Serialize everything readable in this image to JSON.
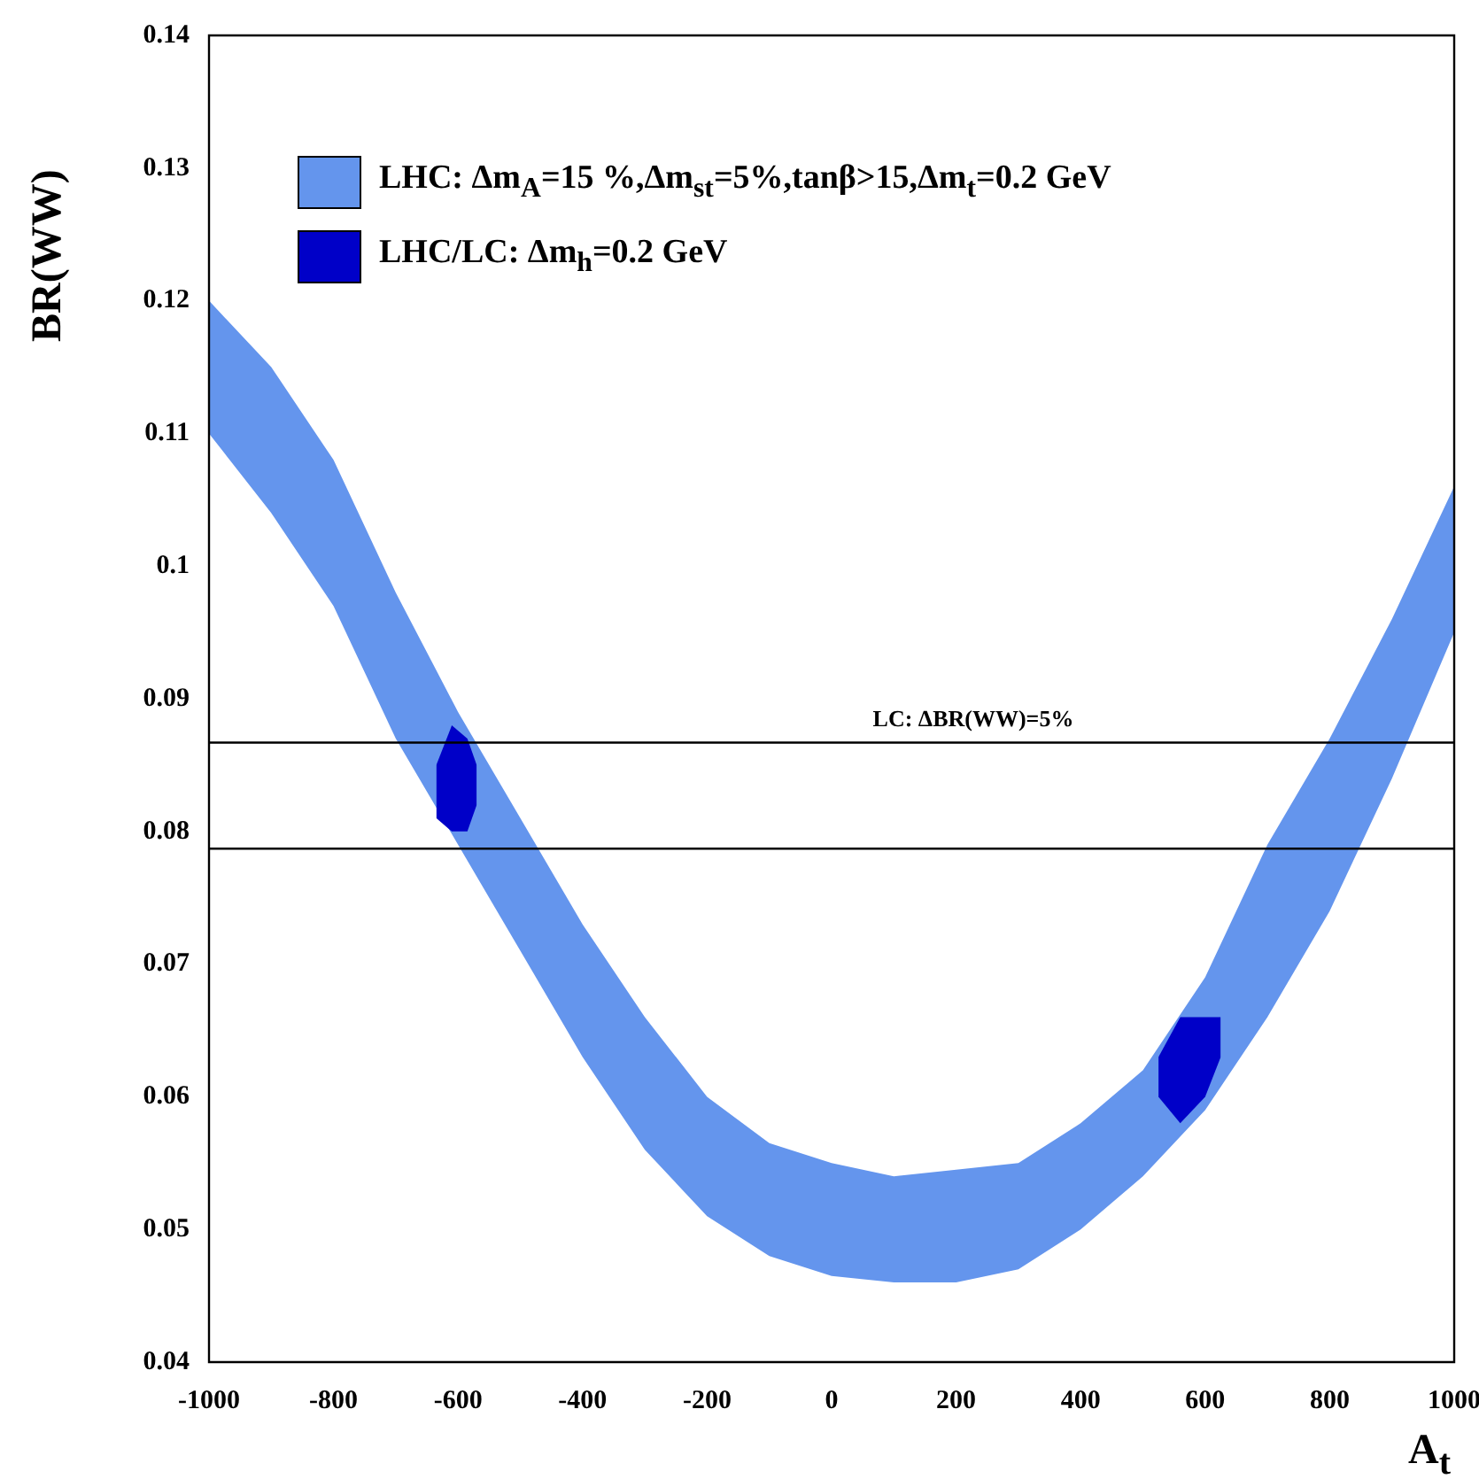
{
  "chart_data": {
    "type": "area",
    "xlabel": "A$_{t}$",
    "ylabel": "BR(WW)",
    "xlim": [
      -1000,
      1000
    ],
    "xticks": [
      -1000,
      -800,
      -600,
      -400,
      -200,
      0,
      200,
      400,
      600,
      800,
      1000
    ],
    "ylim": [
      0.04,
      0.14
    ],
    "yticks": [
      0.04,
      0.05,
      0.06,
      0.07,
      0.08,
      0.09,
      0.1,
      0.11,
      0.12,
      0.13,
      0.14
    ],
    "grid": false,
    "legend": "top left",
    "series": [
      {
        "name": "LHC: Δm$_{A}$=15 %,Δm$_{st}$=5%,tanβ>15,Δm$_{t}$=0.2 GeV",
        "color": "#6495ed",
        "x": [
          -1000,
          -900,
          -800,
          -700,
          -600,
          -500,
          -400,
          -300,
          -200,
          -100,
          0,
          100,
          200,
          300,
          400,
          500,
          600,
          700,
          800,
          900,
          1000
        ],
        "values": [
          null,
          null,
          null,
          null,
          null,
          null,
          null,
          null,
          null,
          null,
          null,
          null,
          null,
          null,
          null,
          null,
          null,
          null,
          null,
          null,
          null
        ],
        "lower": [
          0.11,
          0.104,
          0.097,
          0.087,
          0.079,
          0.071,
          0.063,
          0.056,
          0.051,
          0.048,
          0.0465,
          0.046,
          0.046,
          0.047,
          0.05,
          0.054,
          0.059,
          0.066,
          0.074,
          0.084,
          0.095
        ],
        "upper": [
          0.12,
          0.115,
          0.108,
          0.098,
          0.089,
          0.081,
          0.073,
          0.066,
          0.06,
          0.0565,
          0.055,
          0.054,
          0.0545,
          0.055,
          0.058,
          0.062,
          0.069,
          0.079,
          0.087,
          0.096,
          0.106
        ]
      },
      {
        "name": "LHC/LC: Δm$_{h}$=0.2 GeV",
        "color": "#0000c8",
        "x": [
          -635,
          -610,
          -585,
          -570,
          null,
          525,
          560,
          600,
          625
        ],
        "values": [
          null,
          null,
          null,
          null,
          null,
          null,
          null,
          null,
          null
        ],
        "lower": [
          0.081,
          0.08,
          0.08,
          0.082,
          null,
          0.06,
          0.058,
          0.06,
          0.063
        ],
        "upper": [
          0.085,
          0.088,
          0.087,
          0.085,
          null,
          0.063,
          0.066,
          0.066,
          0.066
        ]
      }
    ],
    "ref_lines": [
      {
        "axis": "y",
        "value": 0.0867,
        "color": "#000000"
      },
      {
        "axis": "y",
        "value": 0.0787,
        "color": "#000000"
      }
    ],
    "annotations": [
      "LC: ΔBR(WW)=5%"
    ]
  }
}
